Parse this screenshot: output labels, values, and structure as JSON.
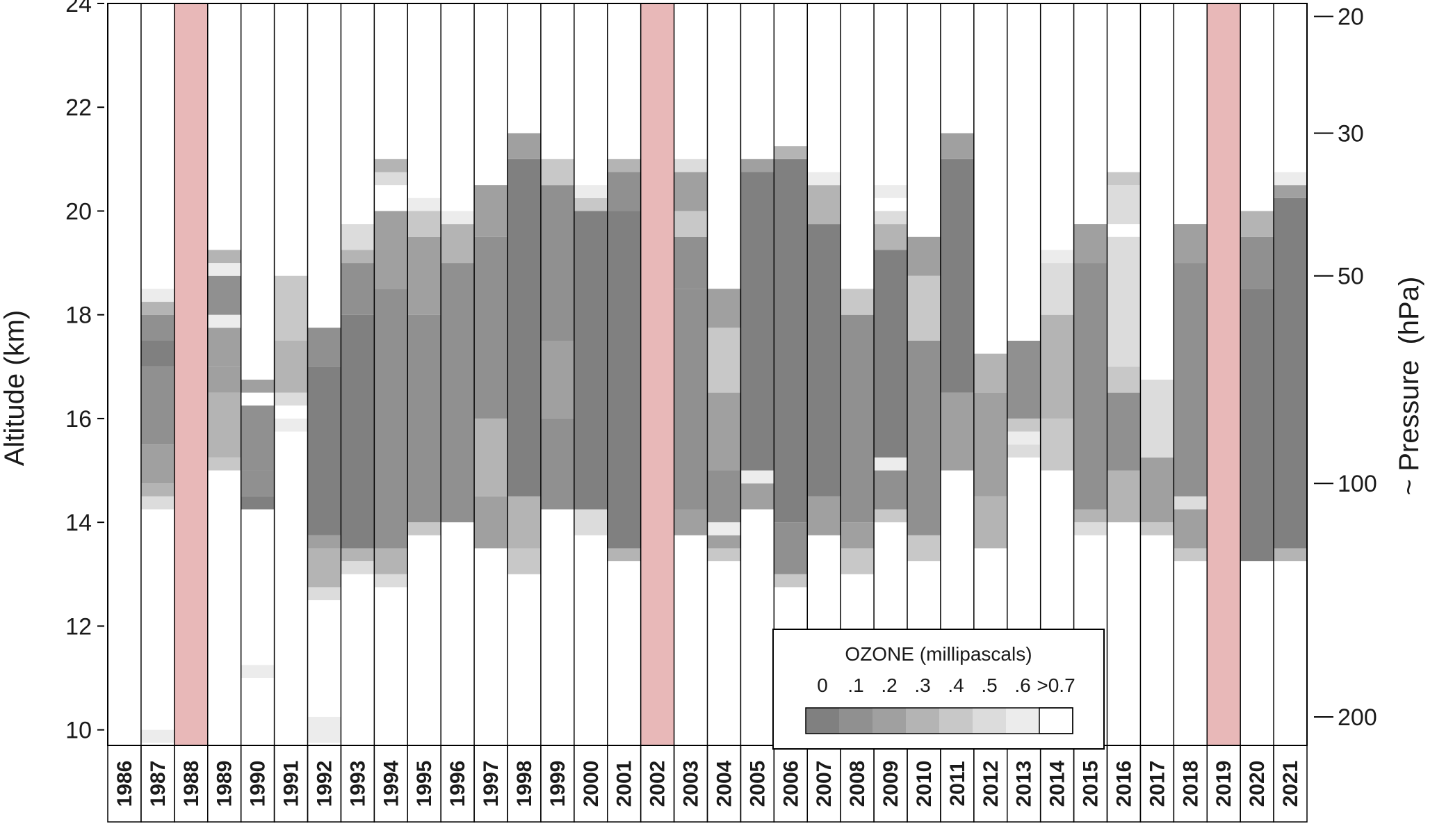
{
  "chart_data": {
    "type": "heatmap",
    "title": "",
    "ylabel": "Altitude (km)",
    "y2label": "~ Pressure  (hPa)",
    "ylim": [
      9.7,
      24.0
    ],
    "y_ticks": [
      10,
      12,
      14,
      16,
      18,
      20,
      22,
      24
    ],
    "y_tick_labels": [
      "10",
      "12",
      "14",
      "16",
      "18",
      "20",
      "22",
      "24"
    ],
    "y2_ticks": [
      {
        "altitude_km": 23.75,
        "label": "20"
      },
      {
        "altitude_km": 21.5,
        "label": "30"
      },
      {
        "altitude_km": 18.75,
        "label": "50"
      },
      {
        "altitude_km": 14.75,
        "label": "100"
      },
      {
        "altitude_km": 10.25,
        "label": "200"
      }
    ],
    "highlight_color": "#e8b8b8",
    "highlight_label_color": "#c00000",
    "layer_height_km": 0.25,
    "legend": {
      "title": "OZONE (millipascals)",
      "bin_labels": [
        "0",
        ".1",
        ".2",
        ".3",
        ".4",
        ".5",
        ".6",
        ">0.7"
      ],
      "colors": [
        "#808080",
        "#909090",
        "#a0a0a0",
        "#b4b4b4",
        "#c8c8c8",
        "#dcdcdc",
        "#ececec",
        "#ffffff"
      ]
    },
    "years": [
      {
        "year": "1986",
        "highlight": false,
        "bands": []
      },
      {
        "year": "1987",
        "highlight": false,
        "bands": [
          [
            9.75,
            10.0,
            0.6
          ],
          [
            14.25,
            14.5,
            0.55
          ],
          [
            14.5,
            14.75,
            0.35
          ],
          [
            14.75,
            15.5,
            0.25
          ],
          [
            15.5,
            17.0,
            0.15
          ],
          [
            17.0,
            17.5,
            0.05
          ],
          [
            17.5,
            18.0,
            0.15
          ],
          [
            18.0,
            18.25,
            0.35
          ],
          [
            18.25,
            18.5,
            0.65
          ]
        ]
      },
      {
        "year": "1988",
        "highlight": true,
        "bands": []
      },
      {
        "year": "1989",
        "highlight": false,
        "bands": [
          [
            15.0,
            15.25,
            0.45
          ],
          [
            15.25,
            16.5,
            0.35
          ],
          [
            16.5,
            17.0,
            0.2
          ],
          [
            17.0,
            17.75,
            0.2
          ],
          [
            17.75,
            18.0,
            0.65
          ],
          [
            18.0,
            18.75,
            0.15
          ],
          [
            18.75,
            19.0,
            0.65
          ],
          [
            19.0,
            19.25,
            0.35
          ]
        ]
      },
      {
        "year": "1990",
        "highlight": false,
        "bands": [
          [
            11.0,
            11.25,
            0.65
          ],
          [
            14.25,
            14.5,
            0.05
          ],
          [
            14.5,
            15.0,
            0.15
          ],
          [
            15.0,
            16.25,
            0.1
          ],
          [
            16.5,
            16.75,
            0.2
          ]
        ]
      },
      {
        "year": "1991",
        "highlight": false,
        "bands": [
          [
            15.75,
            16.0,
            0.65
          ],
          [
            16.25,
            16.5,
            0.55
          ],
          [
            16.5,
            17.5,
            0.35
          ],
          [
            17.5,
            18.75,
            0.45
          ],
          [
            19.5,
            19.75,
            0.7
          ]
        ]
      },
      {
        "year": "1992",
        "highlight": false,
        "bands": [
          [
            9.75,
            10.25,
            0.65
          ],
          [
            12.5,
            12.75,
            0.55
          ],
          [
            12.75,
            13.5,
            0.35
          ],
          [
            13.5,
            13.75,
            0.25
          ],
          [
            13.75,
            17.0,
            0.05
          ],
          [
            17.0,
            17.75,
            0.15
          ]
        ]
      },
      {
        "year": "1993",
        "highlight": false,
        "bands": [
          [
            13.0,
            13.25,
            0.55
          ],
          [
            13.25,
            13.5,
            0.35
          ],
          [
            13.5,
            18.0,
            0.05
          ],
          [
            18.0,
            19.0,
            0.15
          ],
          [
            19.0,
            19.25,
            0.35
          ],
          [
            19.25,
            19.75,
            0.55
          ]
        ]
      },
      {
        "year": "1994",
        "highlight": false,
        "bands": [
          [
            12.75,
            13.0,
            0.55
          ],
          [
            13.0,
            13.5,
            0.35
          ],
          [
            13.5,
            18.5,
            0.1
          ],
          [
            18.5,
            20.0,
            0.25
          ],
          [
            20.5,
            20.75,
            0.55
          ],
          [
            20.75,
            21.0,
            0.35
          ]
        ]
      },
      {
        "year": "1995",
        "highlight": false,
        "bands": [
          [
            13.75,
            14.0,
            0.45
          ],
          [
            14.0,
            18.0,
            0.1
          ],
          [
            18.0,
            19.5,
            0.25
          ],
          [
            19.5,
            20.0,
            0.45
          ],
          [
            20.0,
            20.25,
            0.65
          ]
        ]
      },
      {
        "year": "1996",
        "highlight": false,
        "bands": [
          [
            14.0,
            19.0,
            0.1
          ],
          [
            19.0,
            19.75,
            0.35
          ],
          [
            19.75,
            20.0,
            0.65
          ]
        ]
      },
      {
        "year": "1997",
        "highlight": false,
        "bands": [
          [
            13.5,
            14.5,
            0.2
          ],
          [
            14.5,
            16.0,
            0.35
          ],
          [
            16.0,
            19.5,
            0.1
          ],
          [
            19.5,
            20.5,
            0.25
          ]
        ]
      },
      {
        "year": "1998",
        "highlight": false,
        "bands": [
          [
            13.0,
            13.5,
            0.45
          ],
          [
            13.5,
            14.5,
            0.3
          ],
          [
            14.5,
            21.0,
            0.05
          ],
          [
            21.0,
            21.5,
            0.2
          ]
        ]
      },
      {
        "year": "1999",
        "highlight": false,
        "bands": [
          [
            14.25,
            16.0,
            0.1
          ],
          [
            16.0,
            17.5,
            0.2
          ],
          [
            17.5,
            20.5,
            0.15
          ],
          [
            20.5,
            21.0,
            0.45
          ]
        ]
      },
      {
        "year": "2000",
        "highlight": false,
        "bands": [
          [
            13.75,
            14.25,
            0.55
          ],
          [
            14.25,
            20.0,
            0.05
          ],
          [
            20.0,
            20.25,
            0.45
          ],
          [
            20.25,
            20.5,
            0.65
          ]
        ]
      },
      {
        "year": "2001",
        "highlight": false,
        "bands": [
          [
            13.25,
            13.5,
            0.35
          ],
          [
            13.5,
            20.0,
            0.05
          ],
          [
            20.0,
            20.75,
            0.15
          ],
          [
            20.75,
            21.0,
            0.35
          ]
        ]
      },
      {
        "year": "2002",
        "highlight": true,
        "bands": []
      },
      {
        "year": "2003",
        "highlight": false,
        "bands": [
          [
            13.75,
            14.25,
            0.25
          ],
          [
            14.25,
            18.5,
            0.1
          ],
          [
            18.5,
            19.5,
            0.15
          ],
          [
            19.5,
            20.0,
            0.45
          ],
          [
            20.0,
            20.75,
            0.25
          ],
          [
            20.75,
            21.0,
            0.55
          ]
        ]
      },
      {
        "year": "2004",
        "highlight": false,
        "bands": [
          [
            13.25,
            13.5,
            0.45
          ],
          [
            13.5,
            13.75,
            0.25
          ],
          [
            13.75,
            14.0,
            0.65
          ],
          [
            14.0,
            15.0,
            0.1
          ],
          [
            15.0,
            16.5,
            0.2
          ],
          [
            16.5,
            17.75,
            0.4
          ],
          [
            17.75,
            18.5,
            0.2
          ]
        ]
      },
      {
        "year": "2005",
        "highlight": false,
        "bands": [
          [
            14.25,
            14.75,
            0.2
          ],
          [
            14.75,
            15.0,
            0.65
          ],
          [
            15.0,
            20.75,
            0.05
          ],
          [
            20.75,
            21.0,
            0.25
          ]
        ]
      },
      {
        "year": "2006",
        "highlight": false,
        "bands": [
          [
            12.75,
            13.0,
            0.45
          ],
          [
            13.0,
            14.0,
            0.15
          ],
          [
            14.0,
            21.0,
            0.05
          ],
          [
            21.0,
            21.25,
            0.3
          ]
        ]
      },
      {
        "year": "2007",
        "highlight": false,
        "bands": [
          [
            13.75,
            14.5,
            0.2
          ],
          [
            14.5,
            19.75,
            0.05
          ],
          [
            19.75,
            20.5,
            0.3
          ],
          [
            20.5,
            20.75,
            0.65
          ]
        ]
      },
      {
        "year": "2008",
        "highlight": false,
        "bands": [
          [
            13.0,
            13.5,
            0.4
          ],
          [
            13.5,
            14.0,
            0.2
          ],
          [
            14.0,
            18.0,
            0.1
          ],
          [
            18.0,
            18.5,
            0.45
          ]
        ]
      },
      {
        "year": "2009",
        "highlight": false,
        "bands": [
          [
            14.0,
            14.25,
            0.45
          ],
          [
            14.25,
            15.0,
            0.15
          ],
          [
            15.0,
            15.25,
            0.65
          ],
          [
            15.25,
            19.25,
            0.05
          ],
          [
            19.25,
            19.75,
            0.3
          ],
          [
            19.75,
            20.0,
            0.55
          ],
          [
            20.25,
            20.5,
            0.65
          ]
        ]
      },
      {
        "year": "2010",
        "highlight": false,
        "bands": [
          [
            13.25,
            13.75,
            0.45
          ],
          [
            13.75,
            17.5,
            0.1
          ],
          [
            17.5,
            18.75,
            0.45
          ],
          [
            18.75,
            19.5,
            0.25
          ],
          [
            19.75,
            20.0,
            0.7
          ]
        ]
      },
      {
        "year": "2011",
        "highlight": false,
        "bands": [
          [
            15.0,
            16.5,
            0.2
          ],
          [
            16.5,
            21.0,
            0.05
          ],
          [
            21.0,
            21.5,
            0.25
          ]
        ]
      },
      {
        "year": "2012",
        "highlight": false,
        "bands": [
          [
            13.5,
            14.5,
            0.35
          ],
          [
            14.5,
            16.5,
            0.2
          ],
          [
            16.5,
            17.25,
            0.35
          ]
        ]
      },
      {
        "year": "2013",
        "highlight": false,
        "bands": [
          [
            15.25,
            15.5,
            0.55
          ],
          [
            15.5,
            15.75,
            0.65
          ],
          [
            15.75,
            16.0,
            0.4
          ],
          [
            16.0,
            17.5,
            0.15
          ]
        ]
      },
      {
        "year": "2014",
        "highlight": false,
        "bands": [
          [
            15.0,
            16.0,
            0.45
          ],
          [
            16.0,
            18.0,
            0.3
          ],
          [
            18.0,
            19.0,
            0.5
          ],
          [
            19.0,
            19.25,
            0.65
          ]
        ]
      },
      {
        "year": "2015",
        "highlight": false,
        "bands": [
          [
            13.75,
            14.0,
            0.5
          ],
          [
            14.0,
            14.25,
            0.3
          ],
          [
            14.25,
            19.0,
            0.1
          ],
          [
            19.0,
            19.75,
            0.25
          ]
        ]
      },
      {
        "year": "2016",
        "highlight": false,
        "bands": [
          [
            14.0,
            15.0,
            0.3
          ],
          [
            15.0,
            16.5,
            0.15
          ],
          [
            16.5,
            17.0,
            0.45
          ],
          [
            17.0,
            19.5,
            0.55
          ],
          [
            19.75,
            20.5,
            0.55
          ],
          [
            20.5,
            20.75,
            0.45
          ]
        ]
      },
      {
        "year": "2017",
        "highlight": false,
        "bands": [
          [
            13.75,
            14.0,
            0.45
          ],
          [
            14.0,
            15.25,
            0.2
          ],
          [
            15.25,
            16.75,
            0.55
          ]
        ]
      },
      {
        "year": "2018",
        "highlight": false,
        "bands": [
          [
            13.25,
            13.5,
            0.45
          ],
          [
            13.5,
            14.25,
            0.25
          ],
          [
            14.25,
            14.5,
            0.55
          ],
          [
            14.5,
            19.0,
            0.1
          ],
          [
            19.0,
            19.75,
            0.25
          ]
        ]
      },
      {
        "year": "2019",
        "highlight": true,
        "bands": []
      },
      {
        "year": "2020",
        "highlight": false,
        "bands": [
          [
            13.25,
            18.5,
            0.05
          ],
          [
            18.5,
            19.5,
            0.15
          ],
          [
            19.5,
            20.0,
            0.3
          ]
        ]
      },
      {
        "year": "2021",
        "highlight": false,
        "bands": [
          [
            13.25,
            13.5,
            0.35
          ],
          [
            13.5,
            20.25,
            0.05
          ],
          [
            20.25,
            20.5,
            0.25
          ],
          [
            20.5,
            20.75,
            0.65
          ]
        ]
      }
    ]
  }
}
